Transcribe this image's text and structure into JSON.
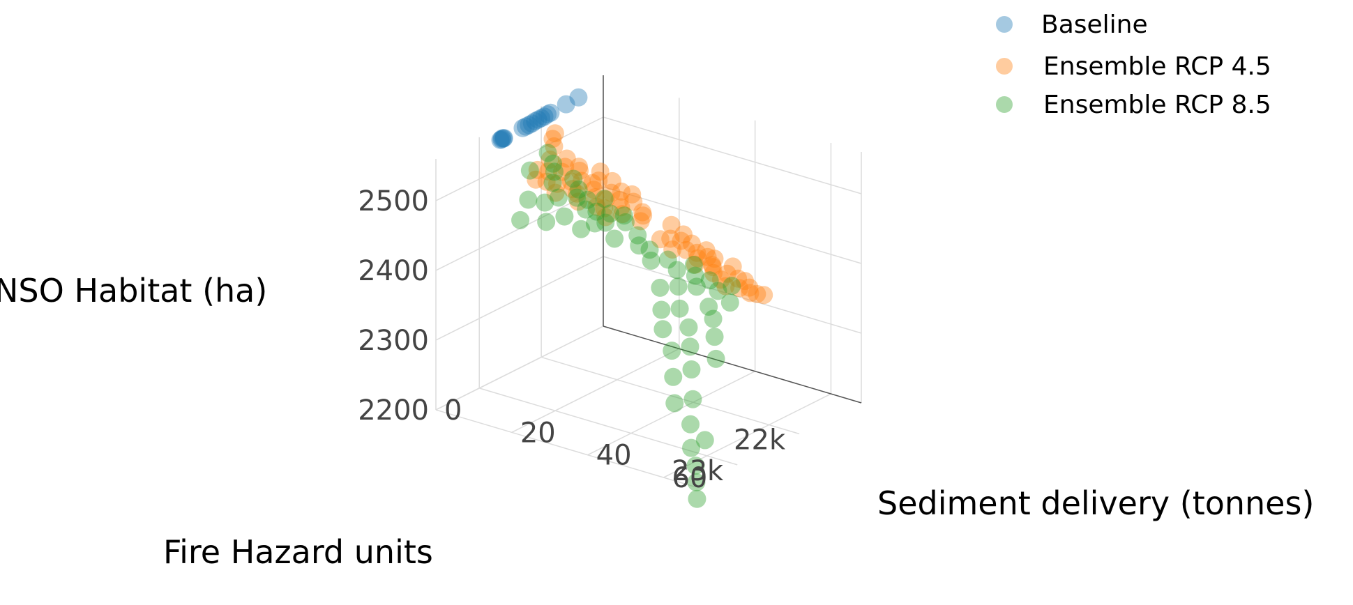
{
  "chart_data": {
    "type": "scatter",
    "projection": "3d",
    "xlabel": "Fire Hazard units",
    "ylabel": "Sediment delivery (tonnes)",
    "zlabel": "NSO Habitat (ha)",
    "xlim": [
      21000,
      23700
    ],
    "ylim": [
      0,
      68
    ],
    "zlim": [
      2200,
      2560
    ],
    "xticks": [
      {
        "v": 22000,
        "label": "22k"
      },
      {
        "v": 23000,
        "label": "23k"
      }
    ],
    "yticks": [
      {
        "v": 0,
        "label": "0"
      },
      {
        "v": 20,
        "label": "20"
      },
      {
        "v": 40,
        "label": "40"
      },
      {
        "v": 60,
        "label": "60"
      }
    ],
    "zticks": [
      {
        "v": 2200,
        "label": "2200"
      },
      {
        "v": 2300,
        "label": "2300"
      },
      {
        "v": 2400,
        "label": "2400"
      },
      {
        "v": 2500,
        "label": "2500"
      }
    ],
    "grid": true,
    "legend_position": "top-right",
    "series": [
      {
        "name": "Baseline",
        "color": "#1f77b4",
        "points": [
          [
            22600,
            0,
            2541
          ],
          [
            22640,
            0,
            2541
          ],
          [
            22660,
            0,
            2541
          ],
          [
            22610,
            0,
            2541
          ],
          [
            22630,
            0,
            2542
          ],
          [
            22300,
            0,
            2542
          ],
          [
            22250,
            0,
            2542
          ],
          [
            22200,
            0,
            2542
          ],
          [
            22150,
            0,
            2542
          ],
          [
            22100,
            0,
            2543
          ],
          [
            22050,
            0,
            2543
          ],
          [
            22000,
            0,
            2543
          ],
          [
            21950,
            0,
            2543
          ],
          [
            21900,
            0,
            2544
          ],
          [
            21850,
            0,
            2544
          ],
          [
            21600,
            0,
            2545
          ],
          [
            21400,
            0,
            2546
          ]
        ]
      },
      {
        "name": "Ensemble RCP 4.5",
        "color": "#ff7f0e",
        "points": [
          [
            22500,
            22,
            2498
          ],
          [
            22600,
            24,
            2495
          ],
          [
            22400,
            20,
            2500
          ],
          [
            22550,
            26,
            2493
          ],
          [
            22450,
            18,
            2502
          ],
          [
            22300,
            15,
            2505
          ],
          [
            22700,
            28,
            2490
          ],
          [
            22350,
            12,
            2508
          ],
          [
            22650,
            20,
            2496
          ],
          [
            22500,
            16,
            2500
          ],
          [
            22200,
            10,
            2510
          ],
          [
            22750,
            22,
            2492
          ],
          [
            22600,
            14,
            2498
          ],
          [
            22400,
            25,
            2494
          ],
          [
            22550,
            30,
            2488
          ],
          [
            22300,
            20,
            2499
          ],
          [
            22450,
            28,
            2491
          ],
          [
            22650,
            32,
            2486
          ],
          [
            22350,
            8,
            2512
          ],
          [
            22500,
            10,
            2505
          ],
          [
            22600,
            18,
            2497
          ],
          [
            22700,
            26,
            2489
          ],
          [
            22250,
            14,
            2507
          ],
          [
            22400,
            12,
            2503
          ],
          [
            22800,
            30,
            2485
          ],
          [
            22500,
            35,
            2482
          ],
          [
            22300,
            26,
            2493
          ],
          [
            22200,
            22,
            2497
          ],
          [
            22650,
            12,
            2500
          ],
          [
            22550,
            8,
            2506
          ],
          [
            22100,
            5,
            2515
          ],
          [
            21900,
            2,
            2520
          ],
          [
            22000,
            3,
            2518
          ],
          [
            22750,
            16,
            2495
          ],
          [
            22350,
            30,
            2487
          ],
          [
            22450,
            34,
            2483
          ],
          [
            22150,
            18,
            2502
          ],
          [
            22600,
            36,
            2480
          ],
          [
            22250,
            28,
            2490
          ],
          [
            22700,
            10,
            2502
          ],
          [
            22500,
            45,
            2462
          ],
          [
            22600,
            48,
            2458
          ],
          [
            22400,
            44,
            2465
          ],
          [
            22550,
            50,
            2455
          ],
          [
            22700,
            46,
            2460
          ],
          [
            22500,
            52,
            2450
          ],
          [
            22650,
            42,
            2466
          ],
          [
            22450,
            47,
            2459
          ],
          [
            22350,
            40,
            2470
          ],
          [
            22600,
            55,
            2445
          ],
          [
            22550,
            58,
            2438
          ],
          [
            22500,
            60,
            2432
          ],
          [
            22650,
            56,
            2440
          ],
          [
            22450,
            53,
            2447
          ],
          [
            22700,
            52,
            2448
          ],
          [
            22400,
            57,
            2440
          ],
          [
            22550,
            43,
            2464
          ],
          [
            22600,
            62,
            2426
          ],
          [
            22500,
            63,
            2424
          ],
          [
            22450,
            61,
            2428
          ],
          [
            22650,
            58,
            2434
          ],
          [
            22700,
            60,
            2430
          ],
          [
            22550,
            54,
            2444
          ],
          [
            22400,
            50,
            2452
          ],
          [
            22600,
            51,
            2451
          ],
          [
            22550,
            64,
            2420
          ],
          [
            22500,
            65,
            2418
          ],
          [
            22450,
            66,
            2416
          ]
        ]
      },
      {
        "name": "Ensemble RCP 8.5",
        "color": "#2ca02c",
        "points": [
          [
            22600,
            22,
            2488
          ],
          [
            22700,
            26,
            2482
          ],
          [
            22500,
            18,
            2492
          ],
          [
            22800,
            30,
            2477
          ],
          [
            22400,
            15,
            2498
          ],
          [
            22650,
            20,
            2490
          ],
          [
            22750,
            24,
            2484
          ],
          [
            22550,
            12,
            2494
          ],
          [
            22300,
            8,
            2504
          ],
          [
            22850,
            28,
            2475
          ],
          [
            22600,
            32,
            2472
          ],
          [
            22700,
            16,
            2486
          ],
          [
            22200,
            5,
            2510
          ],
          [
            22450,
            24,
            2486
          ],
          [
            22900,
            34,
            2465
          ],
          [
            22650,
            36,
            2462
          ],
          [
            22800,
            14,
            2480
          ],
          [
            22500,
            30,
            2474
          ],
          [
            22950,
            26,
            2468
          ],
          [
            22750,
            38,
            2455
          ],
          [
            22400,
            10,
            2500
          ],
          [
            22600,
            28,
            2478
          ],
          [
            22850,
            20,
            2472
          ],
          [
            22700,
            40,
            2450
          ],
          [
            22550,
            6,
            2502
          ],
          [
            22900,
            16,
            2460
          ],
          [
            22800,
            42,
            2442
          ],
          [
            22650,
            44,
            2440
          ],
          [
            22950,
            10,
            2455
          ],
          [
            22700,
            8,
            2470
          ],
          [
            22600,
            50,
            2440
          ],
          [
            22700,
            52,
            2432
          ],
          [
            22750,
            48,
            2436
          ],
          [
            22650,
            55,
            2428
          ],
          [
            22800,
            54,
            2424
          ],
          [
            22850,
            50,
            2420
          ],
          [
            22900,
            46,
            2414
          ],
          [
            22700,
            58,
            2420
          ],
          [
            22600,
            60,
            2426
          ],
          [
            22750,
            62,
            2412
          ],
          [
            22850,
            58,
            2404
          ],
          [
            22950,
            52,
            2396
          ],
          [
            23000,
            48,
            2390
          ],
          [
            22900,
            60,
            2392
          ],
          [
            23050,
            56,
            2380
          ],
          [
            23100,
            50,
            2370
          ],
          [
            23000,
            62,
            2374
          ],
          [
            23150,
            58,
            2360
          ],
          [
            23200,
            54,
            2350
          ],
          [
            23100,
            64,
            2350
          ],
          [
            23250,
            60,
            2335
          ],
          [
            23300,
            56,
            2320
          ],
          [
            23350,
            62,
            2300
          ],
          [
            23400,
            58,
            2290
          ],
          [
            23450,
            63,
            2270
          ],
          [
            23400,
            66,
            2250
          ],
          [
            23500,
            64,
            2240
          ],
          [
            23550,
            66,
            2220
          ],
          [
            23600,
            67,
            2200
          ],
          [
            23650,
            68,
            2180
          ]
        ]
      }
    ]
  }
}
